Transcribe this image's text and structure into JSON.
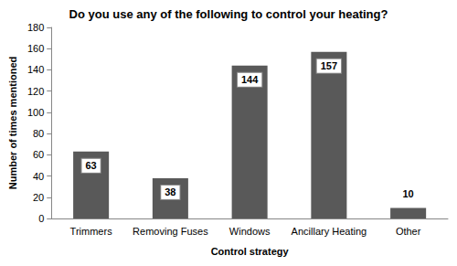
{
  "chart_data": {
    "type": "bar",
    "title": "Do you use any of the following to control your heating?",
    "x_label": "Control strategy",
    "y_label": "Number of times mentioned",
    "categories": [
      "Trimmers",
      "Removing Fuses",
      "Windows",
      "Ancillary Heating",
      "Other"
    ],
    "values": [
      63,
      38,
      144,
      157,
      10
    ],
    "color": "#595959",
    "ylim": [
      0,
      180
    ],
    "yticks": [
      0,
      20,
      40,
      60,
      80,
      100,
      120,
      140,
      160,
      180
    ],
    "grid": false,
    "data_labels": true
  }
}
